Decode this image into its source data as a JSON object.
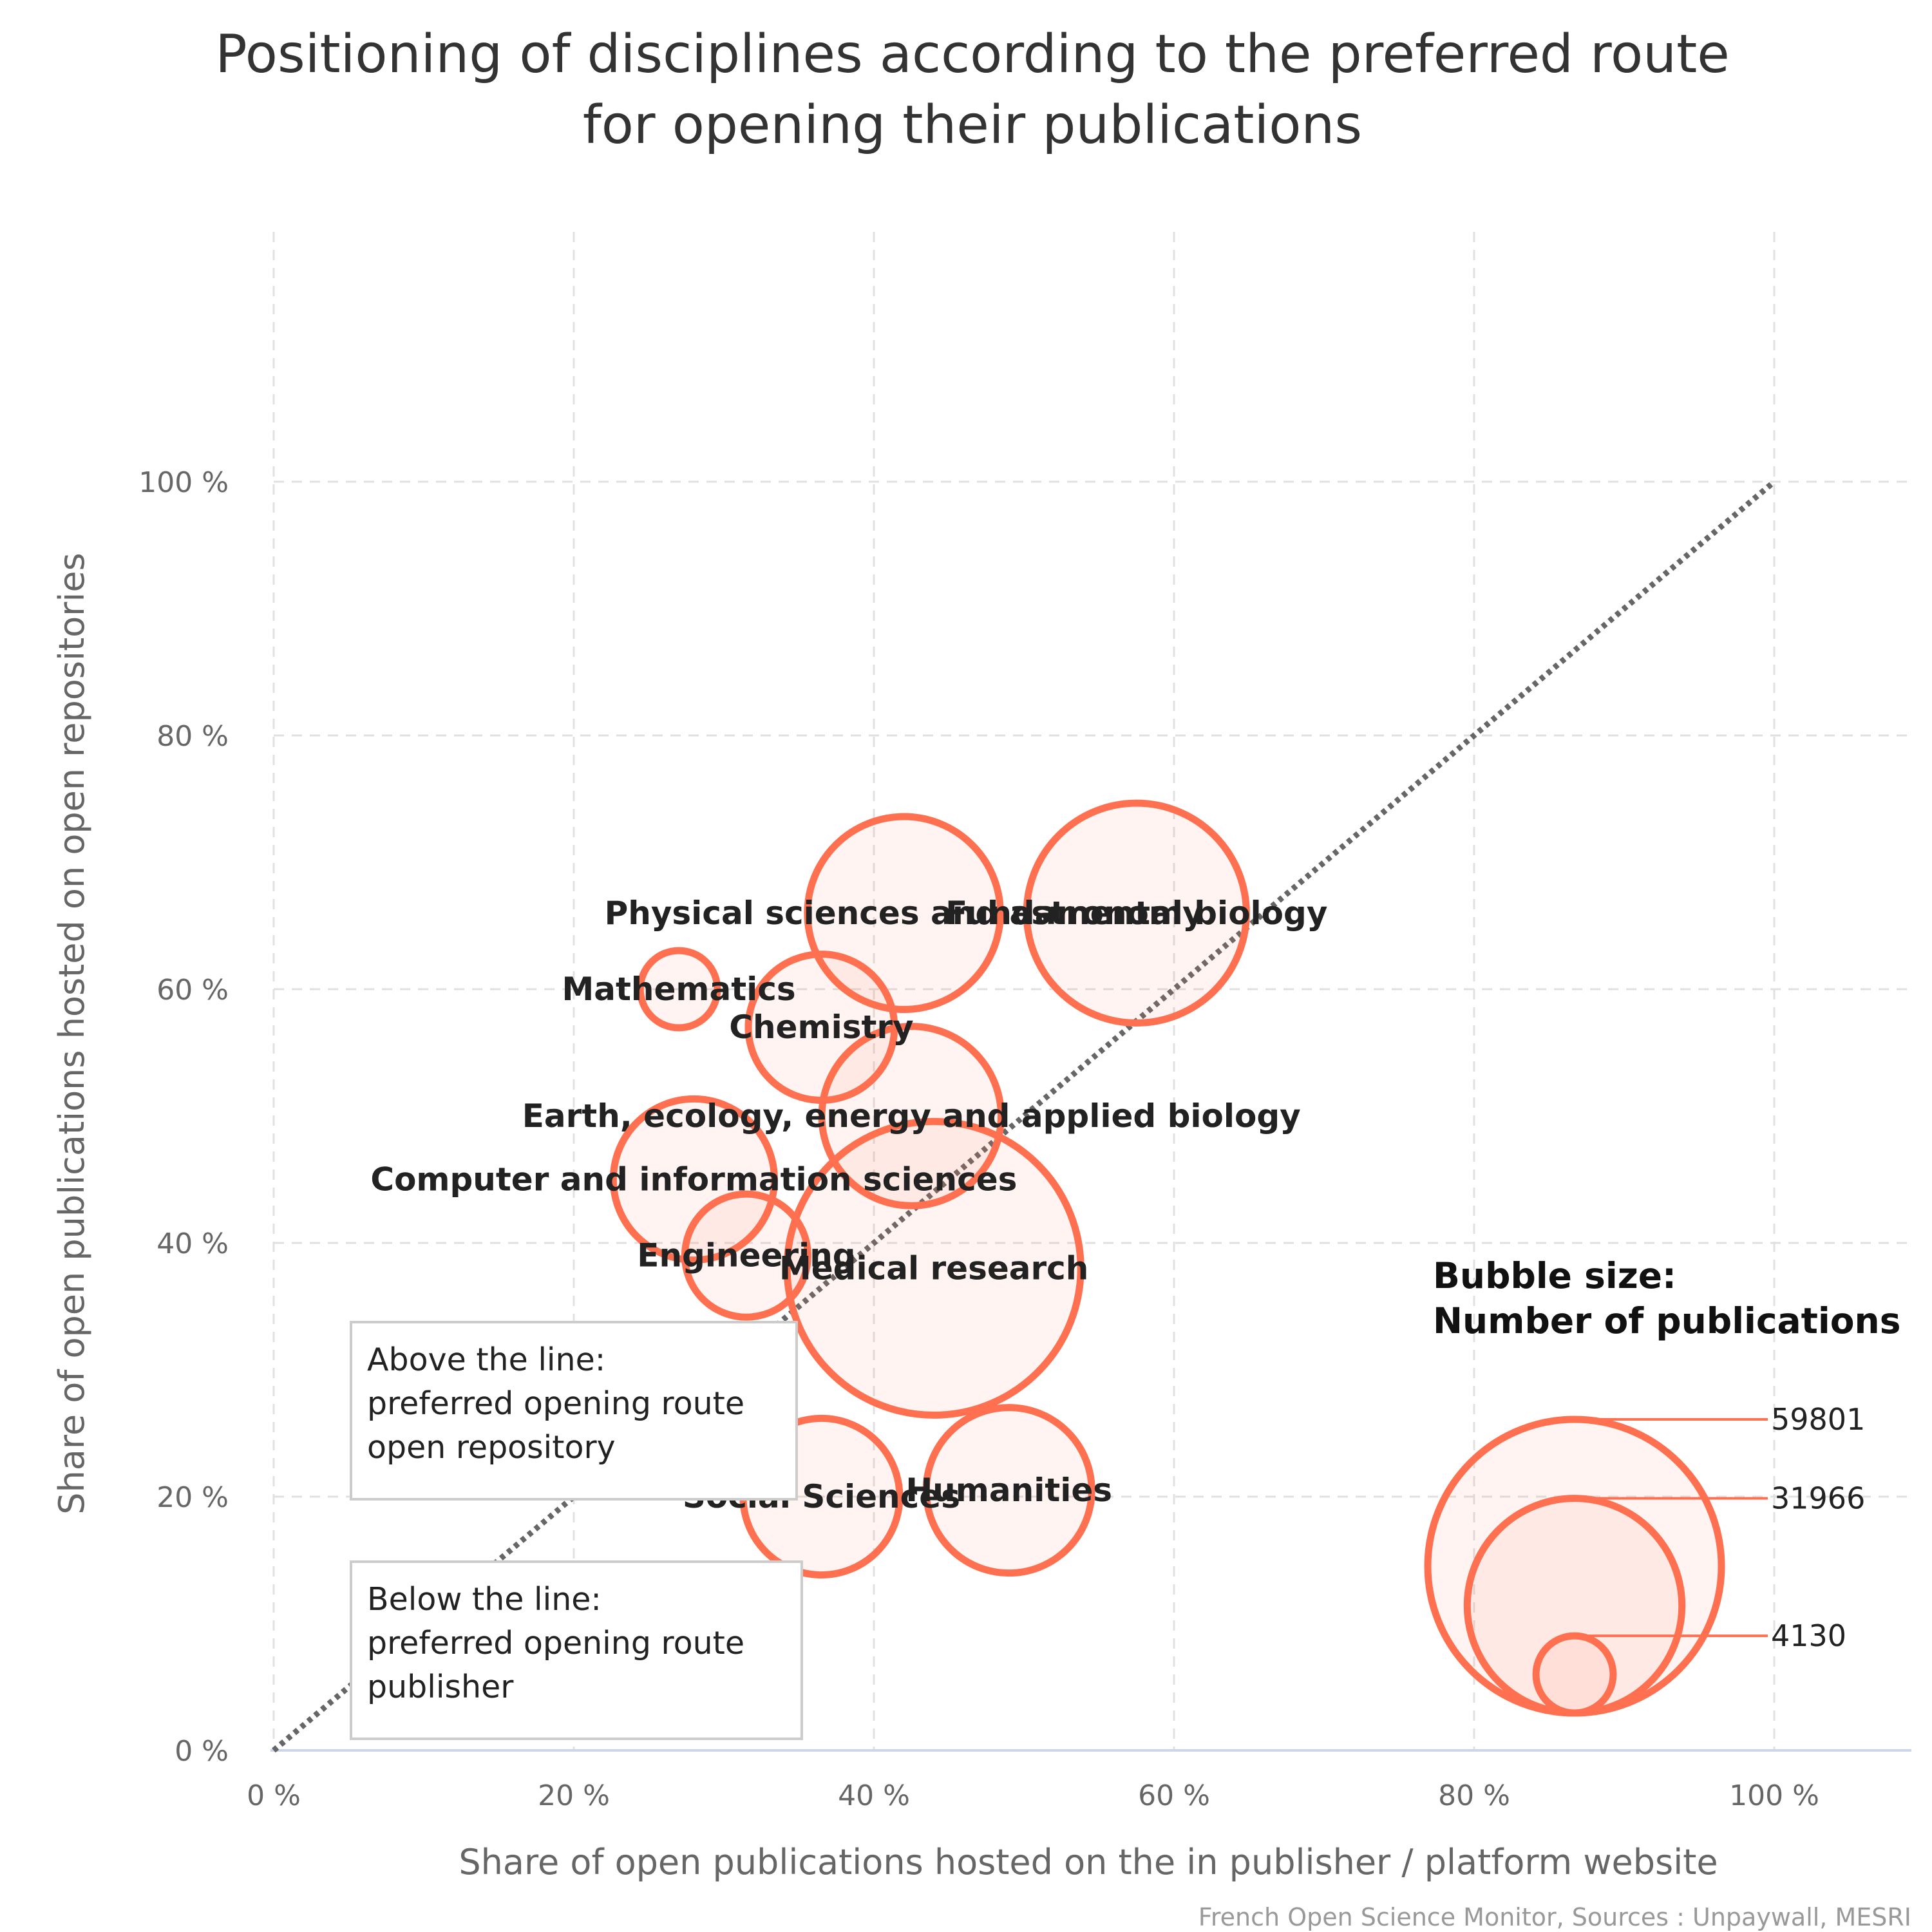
{
  "title_lines": [
    "Positioning of disciplines according to the preferred route",
    "for opening their publications"
  ],
  "credit": "French Open Science Monitor, Sources : Unpaywall, MESRI",
  "notes": {
    "above": [
      "Above the line:",
      "preferred opening route",
      "open repository"
    ],
    "below": [
      "Below the line:",
      "preferred opening route",
      "publisher"
    ]
  },
  "legend": {
    "title_lines": [
      "Bubble size:",
      "Number of publications"
    ],
    "values": [
      59801,
      31966,
      4130
    ],
    "labels": [
      "59801",
      "31966",
      "4130"
    ]
  },
  "colors": {
    "bubble": "#ff7050",
    "diagonal": "#666666"
  },
  "chart_data": {
    "type": "scatter",
    "subtype": "bubble",
    "xlabel": "Share of open publications hosted on the in publisher / platform website",
    "ylabel": "Share of open publications hosted on open repositories",
    "xlim": [
      0,
      110
    ],
    "ylim": [
      0,
      115
    ],
    "xticks": [
      0,
      20,
      40,
      60,
      80,
      100
    ],
    "yticks": [
      0,
      20,
      40,
      60,
      80,
      100
    ],
    "xtick_labels": [
      "0 %",
      "20 %",
      "40 %",
      "60 %",
      "80 %",
      "100 %"
    ],
    "ytick_labels": [
      "0 %",
      "20 %",
      "40 %",
      "60 %",
      "80 %",
      "100 %"
    ],
    "grid": true,
    "reference_line": {
      "from": [
        0,
        0
      ],
      "to": [
        100,
        100
      ],
      "style": "dotted"
    },
    "points": [
      {
        "name": "Physical sciences and astronomy",
        "x": 42.0,
        "y": 66.0,
        "size": 25800
      },
      {
        "name": "Fundamental biology",
        "x": 57.5,
        "y": 66.0,
        "size": 33500
      },
      {
        "name": "Mathematics",
        "x": 27.0,
        "y": 60.0,
        "size": 4130
      },
      {
        "name": "Chemistry",
        "x": 36.5,
        "y": 57.0,
        "size": 14800
      },
      {
        "name": "Earth, ecology, energy and applied biology",
        "x": 42.5,
        "y": 50.0,
        "size": 22300
      },
      {
        "name": "Computer and information sciences",
        "x": 28.0,
        "y": 45.0,
        "size": 18000
      },
      {
        "name": "Engineering",
        "x": 31.5,
        "y": 39.0,
        "size": 10500
      },
      {
        "name": "Medical research",
        "x": 44.0,
        "y": 38.0,
        "size": 59801
      },
      {
        "name": "Social Sciences",
        "x": 36.5,
        "y": 20.0,
        "size": 17000
      },
      {
        "name": "Humanities",
        "x": 49.0,
        "y": 20.5,
        "size": 19000
      }
    ]
  }
}
